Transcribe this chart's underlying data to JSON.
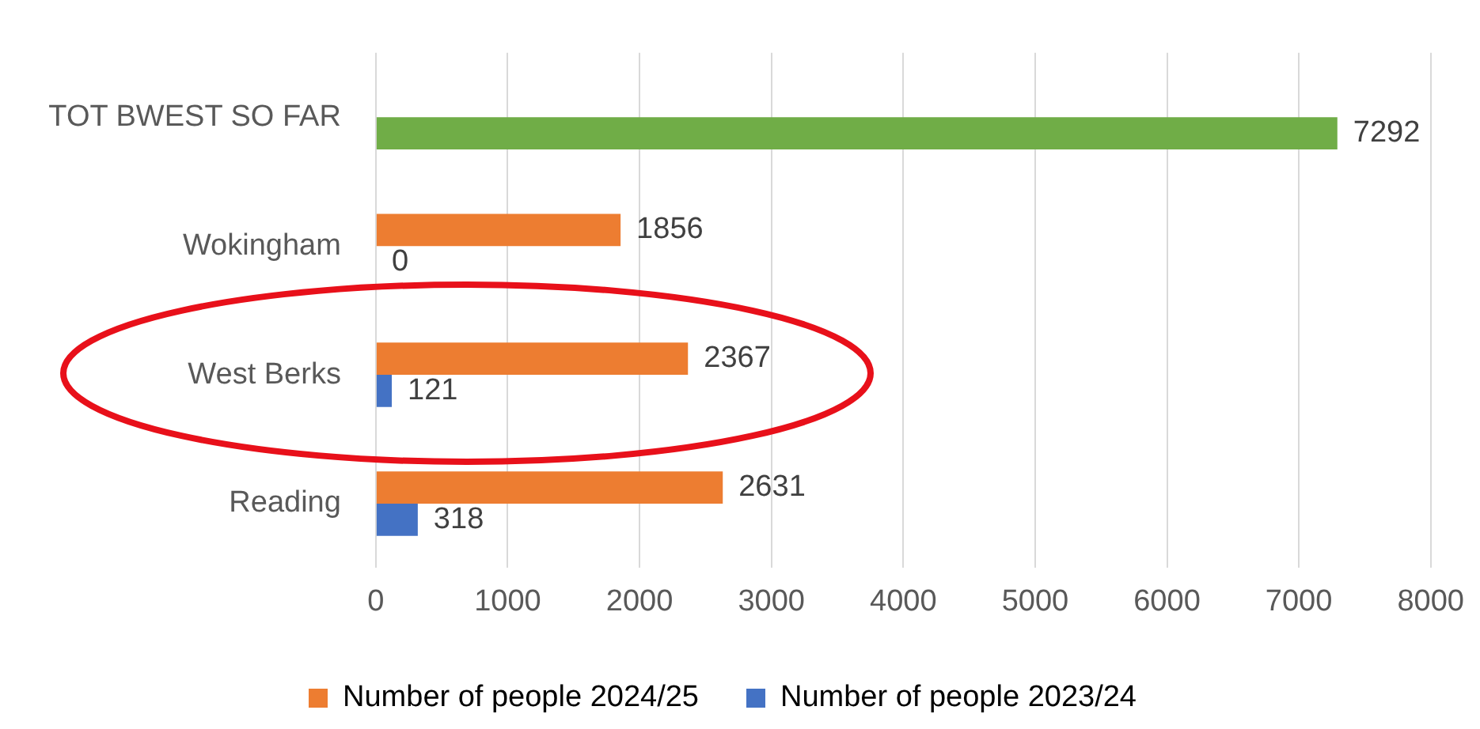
{
  "chart_data": {
    "type": "bar",
    "orientation": "horizontal",
    "categories": [
      "TOT BWEST SO FAR",
      "Wokingham",
      "West Berks",
      "Reading"
    ],
    "series": [
      {
        "name": "Number of people 2024/25",
        "color": "#ed7d31",
        "values": [
          null,
          1856,
          2367,
          2631
        ]
      },
      {
        "name": "Number of people 2023/24",
        "color": "#4472c4",
        "colors": [
          "#70ad47",
          "#4472c4",
          "#4472c4",
          "#4472c4"
        ],
        "values": [
          7292,
          0,
          121,
          318
        ]
      }
    ],
    "xlim": [
      0,
      8000
    ],
    "xticks": [
      0,
      1000,
      2000,
      3000,
      4000,
      5000,
      6000,
      7000,
      8000
    ],
    "grid": "x",
    "legend": "bottom",
    "data_labels": true
  }
}
